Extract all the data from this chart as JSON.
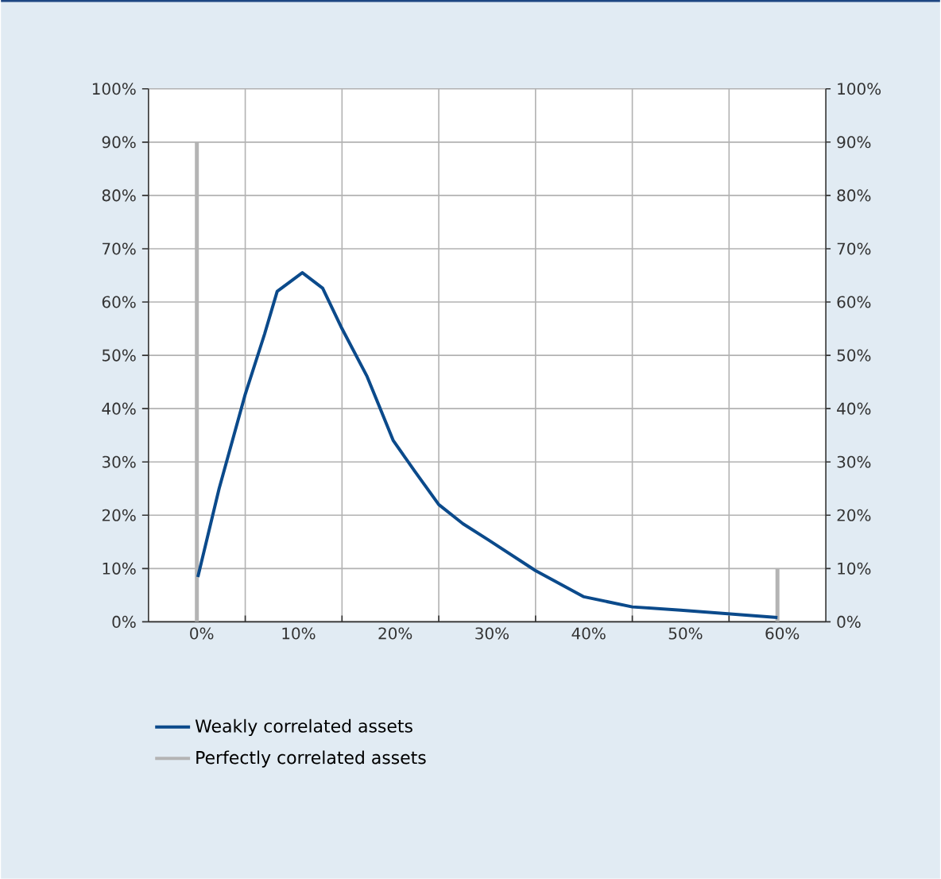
{
  "chart_data": {
    "type": "line",
    "series": [
      {
        "name": "Weakly correlated assets",
        "color": "#0b4a8b",
        "x": [
          0.1,
          2.3,
          5,
          7,
          8.3,
          10.9,
          13,
          15,
          17.6,
          20.3,
          22.5,
          25,
          27.5,
          30.1,
          35,
          40,
          45,
          50,
          55,
          60
        ],
        "values": [
          8.4,
          25,
          42.7,
          54,
          62,
          65.5,
          62.6,
          55,
          46,
          34,
          28.3,
          22,
          18.4,
          15.4,
          9.6,
          4.7,
          2.8,
          2.2,
          1.5,
          0.8
        ]
      },
      {
        "name": "Perfectly correlated assets",
        "color": "#b4b4b4",
        "type": "bar",
        "x": [
          0,
          60
        ],
        "values": [
          90,
          10
        ]
      }
    ],
    "xlim": [
      -5,
      65
    ],
    "xticks": [
      {
        "value": 0,
        "label": "0%"
      },
      {
        "value": 10,
        "label": "10%"
      },
      {
        "value": 20,
        "label": "20%"
      },
      {
        "value": 30,
        "label": "30%"
      },
      {
        "value": 40,
        "label": "40%"
      },
      {
        "value": 50,
        "label": "50%"
      },
      {
        "value": 60,
        "label": "60%"
      },
      {
        "value": 5,
        "label": null
      },
      {
        "value": 15,
        "label": null
      },
      {
        "value": 25,
        "label": null
      },
      {
        "value": 35,
        "label": null
      },
      {
        "value": 45,
        "label": null
      },
      {
        "value": 55,
        "label": null
      }
    ],
    "ylim": [
      0,
      100
    ],
    "yticks": [
      {
        "value": 0,
        "label": "0%"
      },
      {
        "value": 10,
        "label": "10%"
      },
      {
        "value": 20,
        "label": "20%"
      },
      {
        "value": 30,
        "label": "30%"
      },
      {
        "value": 40,
        "label": "40%"
      },
      {
        "value": 50,
        "label": "50%"
      },
      {
        "value": 60,
        "label": "60%"
      },
      {
        "value": 70,
        "label": "70%"
      },
      {
        "value": 80,
        "label": "80%"
      },
      {
        "value": 90,
        "label": "90%"
      },
      {
        "value": 100,
        "label": "100%"
      }
    ],
    "y2lim": [
      0,
      100
    ],
    "y2ticks": [
      {
        "value": 0,
        "label": "0%"
      },
      {
        "value": 10,
        "label": "10%"
      },
      {
        "value": 20,
        "label": "20%"
      },
      {
        "value": 30,
        "label": "30%"
      },
      {
        "value": 40,
        "label": "40%"
      },
      {
        "value": 50,
        "label": "50%"
      },
      {
        "value": 60,
        "label": "60%"
      },
      {
        "value": 70,
        "label": "70%"
      },
      {
        "value": 80,
        "label": "80%"
      },
      {
        "value": 90,
        "label": "90%"
      },
      {
        "value": 100,
        "label": "100%"
      }
    ],
    "grid": true,
    "legend": "bottom"
  }
}
